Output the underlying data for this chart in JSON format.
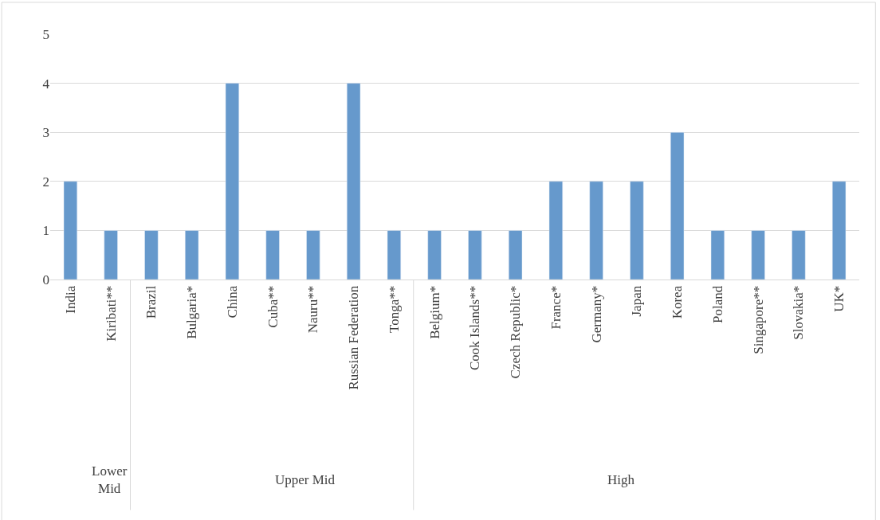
{
  "chart_data": {
    "type": "bar",
    "categories": [
      "India",
      "Kiribati**",
      "Brazil",
      "Bulgaria*",
      "China",
      "Cuba**",
      "Nauru**",
      "Russian Federation",
      "Tonga**",
      "Belgium*",
      "Cook Islands**",
      "Czech Republic*",
      "France*",
      "Germany*",
      "Japan",
      "Korea",
      "Poland",
      "Singapore**",
      "Slovakia*",
      "UK*"
    ],
    "values": [
      2,
      1,
      1,
      1,
      4,
      1,
      1,
      4,
      1,
      1,
      1,
      1,
      2,
      2,
      2,
      3,
      1,
      1,
      1,
      2
    ],
    "color": "#6699cc",
    "ylim": [
      0,
      5
    ],
    "yticks": [
      0,
      1,
      2,
      3,
      4,
      5
    ],
    "grid": "y",
    "annotations": [
      "Lower\nMid",
      "Upper Mid",
      "High"
    ]
  }
}
